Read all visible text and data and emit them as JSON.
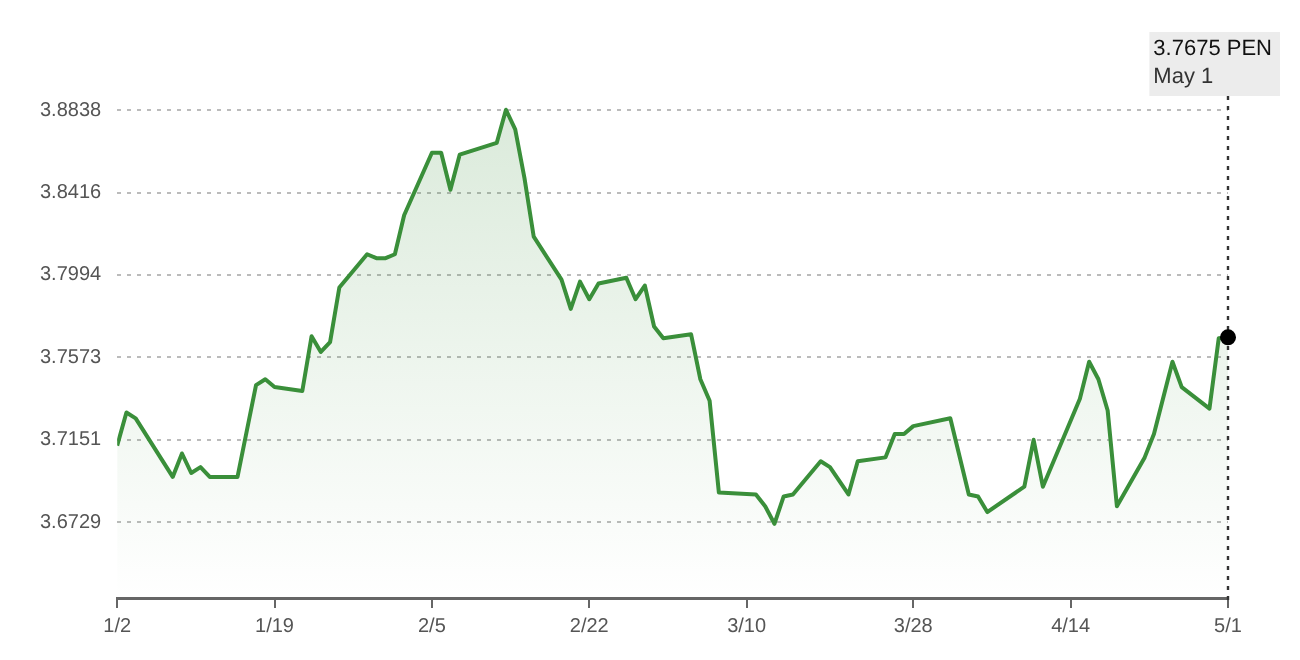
{
  "chart_data": {
    "type": "area",
    "x": [
      "--01-02",
      "--01-03",
      "--01-04",
      "--01-08",
      "--01-09",
      "--01-10",
      "--01-11",
      "--01-12",
      "--01-15",
      "--01-17",
      "--01-18",
      "--01-19",
      "--01-22",
      "--01-23",
      "--01-24",
      "--01-25",
      "--01-26",
      "--01-29",
      "--01-30",
      "--01-31",
      "--02-01",
      "--02-02",
      "--02-05",
      "--02-06",
      "--02-07",
      "--02-08",
      "--02-12",
      "--02-13",
      "--02-14",
      "--02-15",
      "--02-16",
      "--02-19",
      "--02-20",
      "--02-21",
      "--02-22",
      "--02-23",
      "--02-26",
      "--02-27",
      "--02-28",
      "--02-29",
      "--03-01",
      "--03-04",
      "--03-05",
      "--03-06",
      "--03-07",
      "--03-11",
      "--03-12",
      "--03-13",
      "--03-14",
      "--03-15",
      "--03-18",
      "--03-19",
      "--03-21",
      "--03-22",
      "--03-25",
      "--03-26",
      "--03-27",
      "--03-28",
      "--04-01",
      "--04-03",
      "--04-04",
      "--04-05",
      "--04-09",
      "--04-10",
      "--04-11",
      "--04-15",
      "--04-16",
      "--04-17",
      "--04-18",
      "--04-19",
      "--04-22",
      "--04-23",
      "--04-25",
      "--04-26",
      "--04-29",
      "--04-30",
      "--05-01"
    ],
    "series": [
      {
        "color": "#3a8f3a",
        "values": [
          3.712,
          3.729,
          3.726,
          3.696,
          3.708,
          3.698,
          3.701,
          3.696,
          3.696,
          3.743,
          3.746,
          3.742,
          3.74,
          3.768,
          3.76,
          3.765,
          3.793,
          3.81,
          3.808,
          3.808,
          3.81,
          3.83,
          3.862,
          3.862,
          3.843,
          3.861,
          3.867,
          3.884,
          3.874,
          3.849,
          3.819,
          3.797,
          3.782,
          3.796,
          3.787,
          3.795,
          3.798,
          3.787,
          3.794,
          3.773,
          3.767,
          3.769,
          3.746,
          3.735,
          3.688,
          3.687,
          3.681,
          3.672,
          3.686,
          3.687,
          3.704,
          3.701,
          3.687,
          3.704,
          3.706,
          3.718,
          3.718,
          3.722,
          3.726,
          3.687,
          3.686,
          3.678,
          3.691,
          3.715,
          3.691,
          3.736,
          3.755,
          3.746,
          3.73,
          3.681,
          3.706,
          3.718,
          3.755,
          3.742,
          3.731,
          3.767,
          3.7675
        ]
      }
    ],
    "xlim": [
      "--01-02",
      "--05-01"
    ],
    "xticks": [
      {
        "value": "--01-02",
        "label": "1/2"
      },
      {
        "value": "--01-19",
        "label": "1/19"
      },
      {
        "value": "--02-05",
        "label": "2/5"
      },
      {
        "value": "--02-22",
        "label": "2/22"
      },
      {
        "value": "--03-10",
        "label": "3/10"
      },
      {
        "value": "--03-28",
        "label": "3/28"
      },
      {
        "value": "--04-14",
        "label": "4/14"
      },
      {
        "value": "--05-01",
        "label": "5/1"
      }
    ],
    "ylim": [
      3.634,
      3.889
    ],
    "yticks": [
      3.6729,
      3.7151,
      3.7573,
      3.7994,
      3.8416,
      3.8838
    ],
    "grid": "y",
    "ref_lines": [
      {
        "axis": "x",
        "value": "--05-01",
        "line_style": "dotted",
        "color": "#333333"
      }
    ],
    "annotations": [
      "3.7675 PEN",
      "May 1"
    ]
  }
}
